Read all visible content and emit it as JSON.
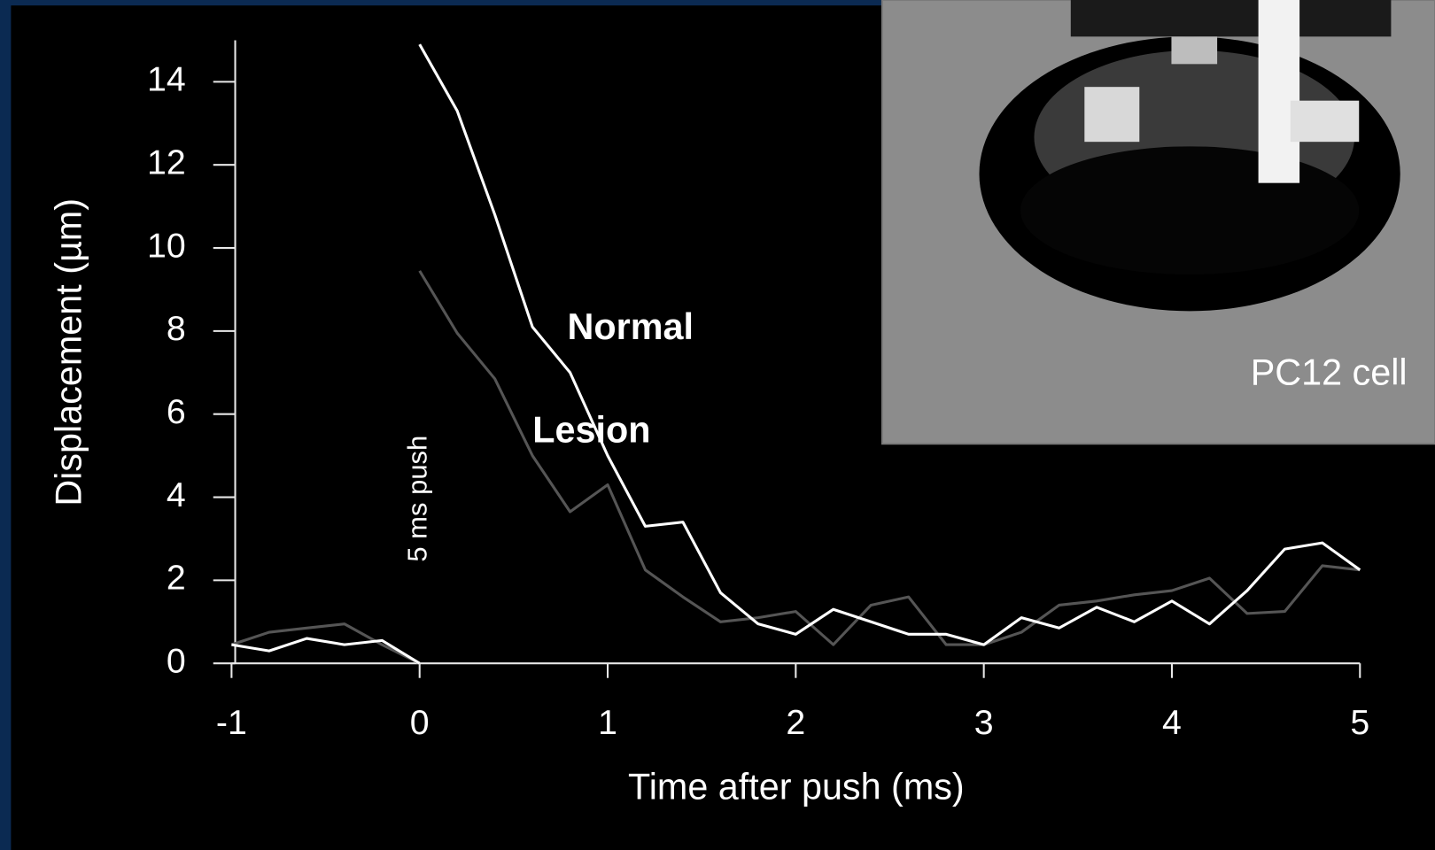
{
  "chart_data": {
    "type": "line",
    "x_label": "Time after push  (ms)",
    "y_label": "Displacement  (µm)",
    "annotations": [
      "5 ms push",
      "PC12 cell"
    ],
    "x": [
      -1,
      -0.8,
      -0.6,
      -0.4,
      -0.2,
      0,
      0,
      0,
      0.2,
      0.4,
      0.6,
      0.8,
      1,
      1.2,
      1.4,
      1.6,
      1.8,
      2,
      2.2,
      2.4,
      2.6,
      2.8,
      3,
      3.2,
      3.4,
      3.6,
      3.8,
      4,
      4.2,
      4.4,
      4.6,
      4.8,
      5
    ],
    "series": [
      {
        "name": "Normal",
        "color": "#ffffff",
        "values": [
          0.45,
          0.3,
          0.6,
          0.45,
          0.55,
          0,
          null,
          14.9,
          13.3,
          10.8,
          8.1,
          7.0,
          5.0,
          3.3,
          3.4,
          1.7,
          0.95,
          0.7,
          1.3,
          1.0,
          0.7,
          0.7,
          0.45,
          1.1,
          0.85,
          1.35,
          1.0,
          1.5,
          0.95,
          1.75,
          2.75,
          2.9,
          2.25
        ]
      },
      {
        "name": "Lesion",
        "color": "#555555",
        "values": [
          0.45,
          0.75,
          0.85,
          0.95,
          0.45,
          0,
          null,
          9.45,
          7.95,
          6.85,
          5.0,
          3.65,
          4.3,
          2.25,
          1.6,
          1.0,
          1.1,
          1.25,
          0.45,
          1.4,
          1.6,
          0.45,
          0.45,
          0.75,
          1.4,
          1.5,
          1.65,
          1.75,
          2.05,
          1.2,
          1.25,
          2.35,
          2.25
        ]
      }
    ],
    "xlim": [
      -1,
      5
    ],
    "xticks": [
      -1,
      0,
      1,
      2,
      3,
      4,
      5
    ],
    "ylim": [
      0,
      15
    ],
    "yticks": [
      0,
      2,
      4,
      6,
      8,
      10,
      12,
      14
    ]
  }
}
